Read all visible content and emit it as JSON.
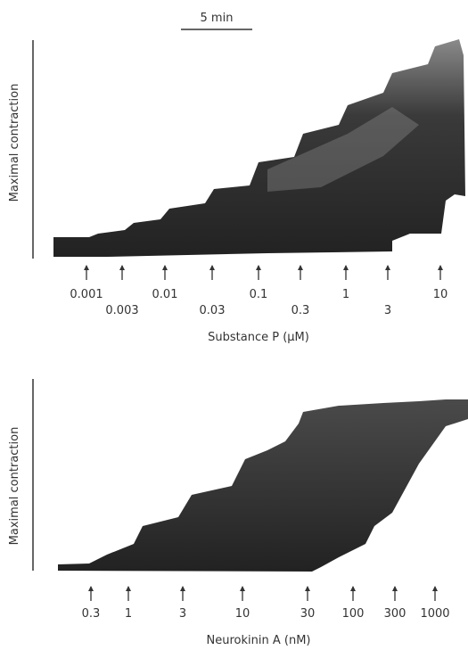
{
  "scale_bar": "5 min",
  "panels": [
    {
      "y_label": "Maximal contraction",
      "doses": [
        "0.001",
        "0.003",
        "0.01",
        "0.03",
        "0.1",
        "0.3",
        "1",
        "3",
        "10"
      ],
      "x_label": "Substance P (μM)"
    },
    {
      "y_label": "Maximal contraction",
      "doses": [
        "0.3",
        "1",
        "3",
        "10",
        "30",
        "100",
        "300",
        "1000"
      ],
      "x_label": "Neurokinin A (nM)"
    }
  ]
}
